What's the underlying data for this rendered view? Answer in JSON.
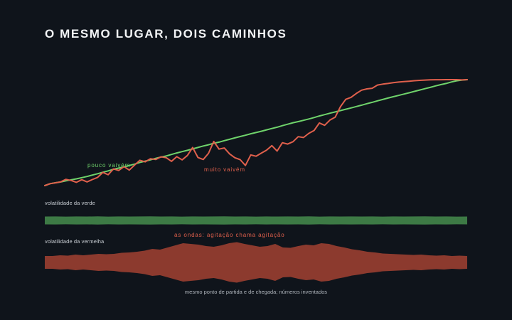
{
  "title": "O MESMO LUGAR, DOIS CAMINHOS",
  "labels": {
    "green_annotation": "pouco vaivém",
    "red_annotation": "muito vaivém",
    "green_band": "volatilidade da verde",
    "red_band": "volatilidade da vermelha",
    "waves_note": "as ondas: agitação chama agitação",
    "footnote": "mesmo ponto de partida e de chegada; números inventados"
  },
  "colors": {
    "background": "#0f141b",
    "green": "#6fd36b",
    "red": "#e0604c",
    "green_band": "#3d7a45",
    "red_band": "#8c3a2e"
  },
  "chart_data": [
    {
      "type": "line",
      "title": "O MESMO LUGAR, DOIS CAMINHOS",
      "xlabel": "",
      "ylabel": "",
      "grid": false,
      "x": [
        0,
        1,
        2,
        3,
        4,
        5,
        6,
        7,
        8,
        9,
        10,
        11,
        12,
        13,
        14,
        15,
        16,
        17,
        18,
        19,
        20,
        21,
        22,
        23,
        24,
        25,
        26,
        27,
        28,
        29,
        30,
        31,
        32,
        33,
        34,
        35,
        36,
        37,
        38,
        39,
        40,
        41,
        42,
        43,
        44,
        45,
        46,
        47,
        48,
        49,
        50,
        51,
        52,
        53,
        54,
        55,
        56,
        57,
        58,
        59,
        60,
        61,
        62,
        63,
        64,
        65,
        66,
        67,
        68,
        69,
        70,
        71,
        72,
        73,
        74,
        75,
        76,
        77,
        78,
        79,
        80
      ],
      "ylim": [
        0,
        100
      ],
      "series": [
        {
          "name": "pouco vaivém",
          "color": "#6fd36b",
          "values": [
            0,
            1.8,
            2.7,
            3.4,
            4.5,
            5.5,
            6.4,
            7.5,
            8.6,
            9.9,
            11.2,
            12.6,
            13.9,
            15.4,
            16.5,
            17.7,
            19.0,
            20.3,
            21.9,
            23.1,
            24.3,
            25.7,
            26.9,
            28.0,
            29.4,
            30.8,
            32.1,
            33.3,
            34.6,
            36.0,
            37.4,
            38.5,
            39.9,
            41.0,
            42.4,
            43.7,
            45.0,
            46.3,
            47.5,
            48.9,
            50.1,
            51.3,
            52.6,
            53.9,
            55.1,
            56.6,
            57.9,
            59.3,
            60.4,
            61.6,
            62.9,
            64.2,
            65.7,
            67.0,
            68.3,
            69.5,
            70.8,
            72.1,
            73.3,
            74.6,
            75.9,
            77.3,
            78.6,
            80.0,
            81.3,
            82.6,
            83.9,
            85.1,
            86.4,
            87.6,
            88.9,
            90.2,
            91.5,
            92.7,
            94.1,
            95.3,
            96.4,
            97.8,
            98.9,
            99.6,
            100
          ]
        },
        {
          "name": "muito vaivém",
          "color": "#e0604c",
          "values": [
            0,
            1.8,
            2.6,
            3.5,
            5.9,
            4.8,
            3.1,
            5.6,
            3.5,
            5.7,
            7.8,
            12.5,
            10.3,
            15.7,
            14.3,
            17.9,
            14.6,
            19.3,
            23.9,
            22.4,
            25.4,
            24.6,
            27.2,
            26.3,
            22.9,
            27.3,
            24.3,
            28.4,
            36.0,
            26.6,
            24.6,
            30.5,
            41.7,
            34.4,
            35.5,
            29.9,
            26.3,
            24.5,
            19.0,
            28.9,
            27.7,
            30.6,
            33.5,
            37.7,
            32.6,
            40.5,
            39.2,
            41.4,
            46.2,
            45.4,
            49.3,
            52.0,
            59.1,
            56.9,
            61.9,
            64.6,
            74.5,
            81.4,
            83.3,
            87.0,
            90.1,
            91.3,
            91.9,
            94.9,
            95.8,
            96.4,
            97.1,
            97.7,
            98.1,
            98.5,
            99.0,
            99.3,
            99.6,
            99.8,
            99.9,
            99.9,
            100,
            100,
            100,
            99.7,
            100
          ]
        }
      ]
    },
    {
      "type": "area",
      "title": "volatilidade da verde",
      "series": [
        {
          "name": "volatilidade da verde",
          "color": "#3d7a45",
          "values": [
            5.5,
            5.6,
            5.4,
            5.6,
            5.5,
            5.7,
            5.4,
            5.6,
            5.5,
            5.6,
            5.7,
            5.5,
            5.6,
            5.4,
            5.6,
            5.5,
            5.6,
            5.7,
            5.5,
            5.6,
            5.4,
            5.6,
            5.5,
            5.6,
            5.5,
            5.7,
            5.4,
            5.6,
            5.5,
            5.6,
            5.5,
            5.6,
            5.4,
            5.6,
            5.5,
            5.6,
            5.7,
            5.5,
            5.6,
            5.4,
            5.5
          ]
        }
      ]
    },
    {
      "type": "area",
      "title": "volatilidade da vermelha",
      "series": [
        {
          "name": "volatilidade da vermelha",
          "color": "#8c3a2e",
          "values": [
            9,
            9,
            10,
            9.5,
            11,
            10,
            11,
            12,
            11.5,
            12,
            13.5,
            14,
            15,
            16.5,
            19,
            18,
            21,
            24,
            27,
            26,
            25,
            23,
            22,
            24,
            27,
            28.5,
            26,
            24,
            22,
            23,
            26,
            21,
            20.5,
            23,
            25,
            24,
            27,
            26,
            23,
            21,
            18.5,
            17,
            15,
            14,
            12.5,
            12,
            11.5,
            11,
            10.5,
            11,
            10,
            9.5,
            10,
            9,
            9.5,
            9
          ]
        }
      ]
    }
  ]
}
